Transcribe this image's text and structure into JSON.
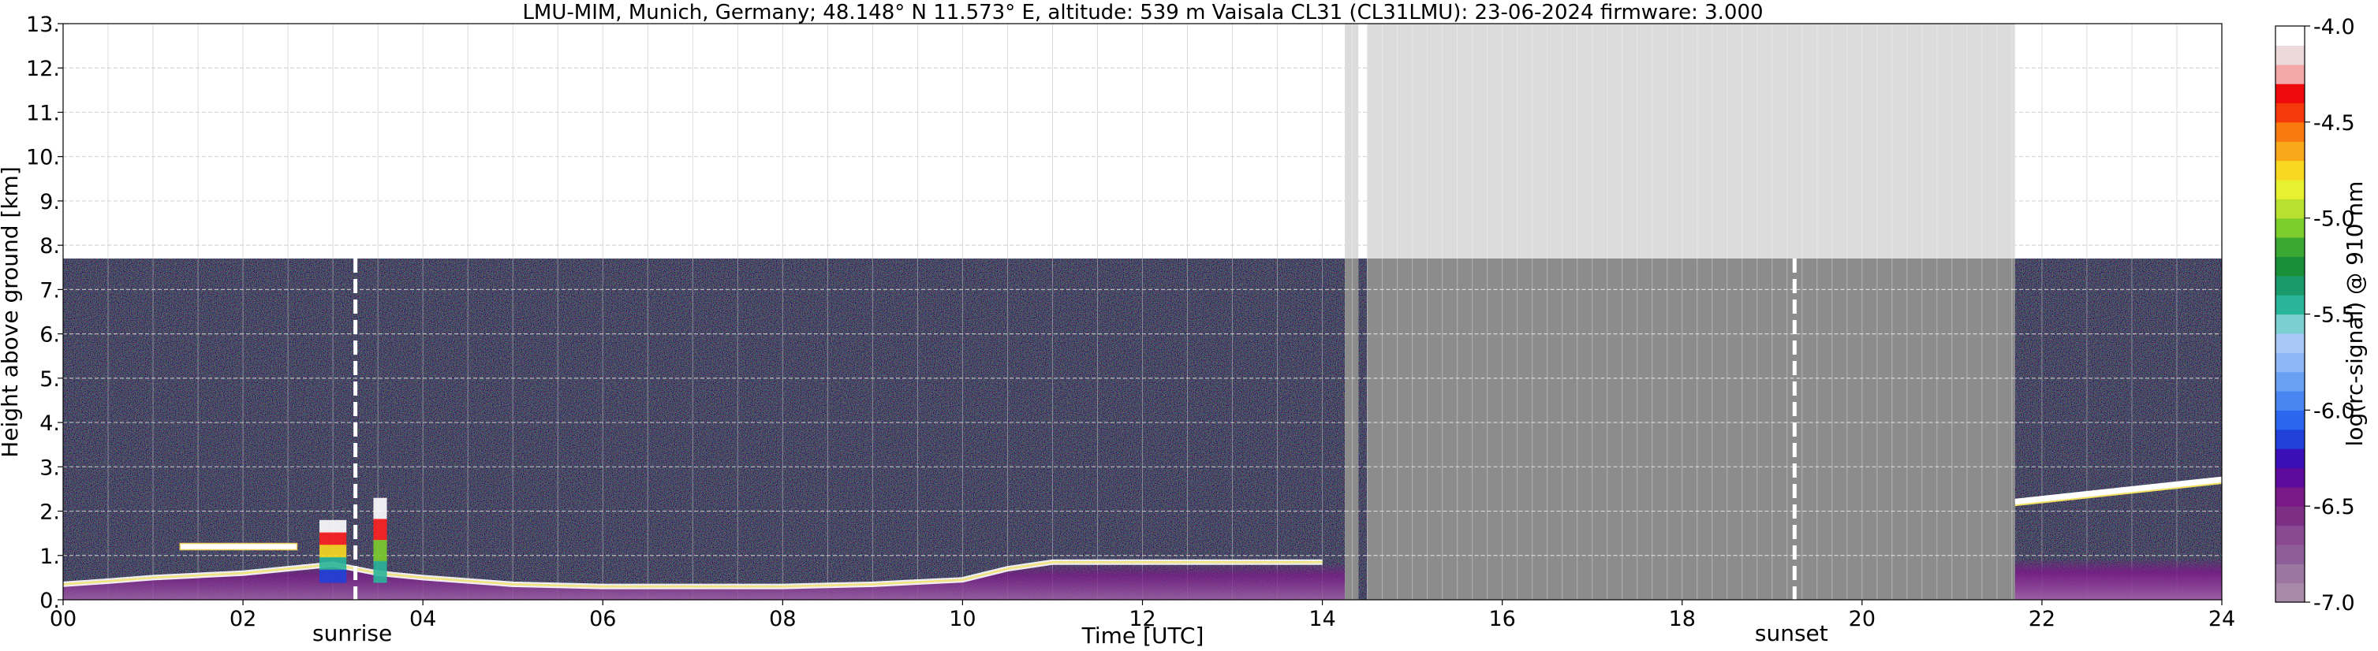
{
  "chart_data": {
    "type": "heatmap",
    "title": "LMU-MIM, Munich, Germany; 48.148° N 11.573° E, altitude: 539 m    Vaisala CL31 (CL31LMU): 23-06-2024    firmware: 3.000",
    "xlabel": "Time [UTC]",
    "ylabel": "Height above ground [km]",
    "xlim": [
      0,
      24
    ],
    "ylim": [
      0,
      13
    ],
    "x_ticks": [
      "00",
      "02",
      "04",
      "06",
      "08",
      "10",
      "12",
      "14",
      "16",
      "18",
      "20",
      "22",
      "24"
    ],
    "y_ticks": [
      "0.",
      "1.",
      "2.",
      "3.",
      "4.",
      "5.",
      "6.",
      "7.",
      "8.",
      "9.",
      "10.",
      "11.",
      "12.",
      "13."
    ],
    "grid": true,
    "colorbar": {
      "label": "log(rc-signal) @ 910 nm",
      "range": [
        -7.0,
        -4.0
      ],
      "ticks": [
        "-7.0",
        "-6.5",
        "-6.0",
        "-5.5",
        "-5.0",
        "-4.5",
        "-4.0"
      ],
      "colors": [
        "#a88aa8",
        "#9a76a0",
        "#8d5e98",
        "#8a4a92",
        "#7d2f85",
        "#7a1a88",
        "#5e0a9c",
        "#3a0fb8",
        "#2040d8",
        "#2a66ee",
        "#4a86f2",
        "#6aa0f4",
        "#8cb6f6",
        "#a8c8f8",
        "#7bcfd0",
        "#2ab59a",
        "#1a9a6a",
        "#1a8f3a",
        "#3aa832",
        "#7ccc2e",
        "#b8e030",
        "#e8f030",
        "#f8d820",
        "#f8a818",
        "#f87a10",
        "#f43a0a",
        "#ee0a0a",
        "#f4a8a8",
        "#ecdada",
        "#ffffff"
      ]
    },
    "data_range_max_height_km": 7.7,
    "missing_data_intervals_utc": [
      [
        14.25,
        14.4
      ],
      [
        14.5,
        21.7
      ]
    ],
    "sunrise_utc": 3.25,
    "sunset_utc": 19.25,
    "annotations": [
      "sunrise",
      "sunset"
    ],
    "aerosol_layer_top_km": [
      [
        0.0,
        0.35
      ],
      [
        0.5,
        0.42
      ],
      [
        1.0,
        0.5
      ],
      [
        1.5,
        0.55
      ],
      [
        2.0,
        0.6
      ],
      [
        2.5,
        0.7
      ],
      [
        3.0,
        0.8
      ],
      [
        3.5,
        0.6
      ],
      [
        4.0,
        0.5
      ],
      [
        5.0,
        0.35
      ],
      [
        6.0,
        0.3
      ],
      [
        7.0,
        0.3
      ],
      [
        8.0,
        0.3
      ],
      [
        9.0,
        0.35
      ],
      [
        10.0,
        0.45
      ],
      [
        10.5,
        0.7
      ],
      [
        11.0,
        0.85
      ],
      [
        12.0,
        0.85
      ],
      [
        13.0,
        0.85
      ],
      [
        14.0,
        0.85
      ],
      [
        22.0,
        0.9
      ],
      [
        23.0,
        0.9
      ],
      [
        24.0,
        0.95
      ]
    ],
    "cloud_layers": [
      {
        "x": [
          1.3,
          2.6
        ],
        "y_km": 1.2
      },
      {
        "x": [
          2.85,
          3.15
        ],
        "y_km": [
          0.4,
          1.8
        ]
      },
      {
        "x": [
          3.45,
          3.6
        ],
        "y_km": [
          0.4,
          2.3
        ]
      },
      {
        "x": [
          21.7,
          24.0
        ],
        "y_km": [
          2.2,
          2.7
        ]
      }
    ]
  }
}
